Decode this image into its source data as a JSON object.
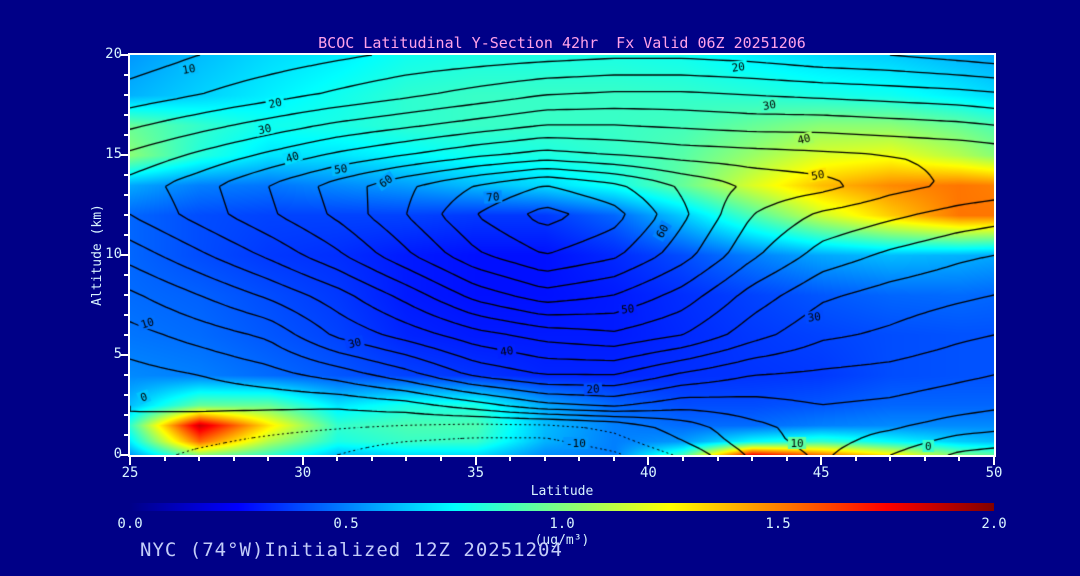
{
  "page": {
    "background": "#000087"
  },
  "header": {
    "title": "BCOC Latitudinal Y-Section 42hr  Fx Valid 06Z 20251206",
    "color": "#ffa2e8"
  },
  "footer": {
    "text": "NYC (74°W)Initialized 12Z 20251204",
    "color": "#c3ccf8"
  },
  "chart_data": {
    "type": "heatmap",
    "title": "BCOC Latitudinal Y-Section 42hr  Fx Valid 06Z 20251206",
    "grid": "off",
    "frame_color": "#ffffff",
    "text_color": "#d8f4ff",
    "contour_line_color": "#000000",
    "x_axis": {
      "label": "Latitude",
      "range": [
        25,
        50
      ],
      "major_ticks": [
        25,
        30,
        35,
        40,
        45,
        50
      ],
      "minor_step": 1
    },
    "y_axis": {
      "label": "Altitude (km)",
      "range": [
        0,
        20
      ],
      "major_ticks": [
        0,
        5,
        10,
        15,
        20
      ],
      "minor_step": 1
    },
    "fill_field": {
      "units": "ug/m3",
      "lats": [
        25,
        27,
        29,
        31,
        33,
        35,
        37,
        39,
        41,
        43,
        45,
        47,
        49,
        50
      ],
      "alts_km": [
        0,
        0.7,
        1.5,
        2.5,
        4,
        6,
        8,
        10,
        12,
        13.5,
        15,
        16.5,
        18,
        20
      ],
      "values": [
        [
          0.55,
          1.0,
          0.85,
          0.62,
          0.68,
          0.68,
          0.52,
          0.5,
          0.9,
          1.8,
          1.55,
          1.3,
          1.0,
          0.95
        ],
        [
          0.72,
          1.55,
          1.1,
          0.8,
          0.86,
          0.86,
          0.6,
          0.5,
          0.55,
          0.75,
          0.85,
          0.75,
          0.65,
          0.62
        ],
        [
          0.85,
          1.85,
          1.3,
          0.85,
          0.9,
          0.9,
          0.62,
          0.5,
          0.46,
          0.46,
          0.5,
          0.52,
          0.52,
          0.52
        ],
        [
          0.62,
          0.95,
          0.95,
          0.7,
          0.8,
          0.8,
          0.58,
          0.45,
          0.4,
          0.4,
          0.42,
          0.45,
          0.45,
          0.45
        ],
        [
          0.52,
          0.5,
          0.46,
          0.42,
          0.38,
          0.35,
          0.32,
          0.32,
          0.34,
          0.35,
          0.36,
          0.4,
          0.41,
          0.41
        ],
        [
          0.48,
          0.46,
          0.42,
          0.38,
          0.32,
          0.3,
          0.3,
          0.3,
          0.33,
          0.36,
          0.38,
          0.4,
          0.41,
          0.41
        ],
        [
          0.46,
          0.44,
          0.4,
          0.36,
          0.3,
          0.28,
          0.28,
          0.3,
          0.34,
          0.38,
          0.42,
          0.45,
          0.46,
          0.45
        ],
        [
          0.45,
          0.4,
          0.36,
          0.34,
          0.3,
          0.28,
          0.28,
          0.33,
          0.4,
          0.5,
          0.58,
          0.62,
          0.6,
          0.58
        ],
        [
          0.45,
          0.4,
          0.38,
          0.38,
          0.38,
          0.36,
          0.36,
          0.45,
          0.65,
          0.9,
          1.15,
          1.35,
          1.52,
          1.52
        ],
        [
          0.58,
          0.5,
          0.48,
          0.52,
          0.56,
          0.62,
          0.68,
          0.78,
          0.95,
          1.18,
          1.38,
          1.48,
          1.52,
          1.5
        ],
        [
          1.02,
          0.82,
          0.7,
          0.7,
          0.74,
          0.78,
          0.8,
          0.85,
          0.92,
          1.05,
          1.18,
          1.22,
          1.1,
          1.02
        ],
        [
          0.95,
          0.85,
          0.78,
          0.8,
          0.84,
          0.86,
          0.86,
          0.86,
          0.88,
          0.95,
          1.02,
          1.02,
          0.95,
          0.9
        ],
        [
          0.6,
          0.66,
          0.72,
          0.78,
          0.84,
          0.86,
          0.86,
          0.86,
          0.85,
          0.83,
          0.8,
          0.78,
          0.72,
          0.68
        ],
        [
          0.55,
          0.62,
          0.68,
          0.72,
          0.78,
          0.8,
          0.8,
          0.8,
          0.78,
          0.72,
          0.68,
          0.65,
          0.6,
          0.58
        ]
      ]
    },
    "contour_field": {
      "lats": [
        25,
        27,
        29,
        31,
        33,
        35,
        37,
        39,
        41,
        43,
        45,
        47,
        49,
        50
      ],
      "alts_km": [
        0,
        0.7,
        1.5,
        2.5,
        4,
        6,
        8,
        10,
        12,
        13.5,
        15,
        16.5,
        18,
        20
      ],
      "interval": 5,
      "level_min": -15,
      "level_max": 75,
      "values": [
        [
          -3,
          -6,
          -8,
          -10,
          -13,
          -14,
          -15,
          -11,
          -4,
          6,
          11,
          5,
          -1,
          -2
        ],
        [
          -2,
          -4,
          -6,
          -8,
          -10,
          -11,
          -11,
          -7,
          0,
          8,
          12,
          8,
          3,
          2
        ],
        [
          0,
          -2,
          -3,
          -4,
          -5,
          -6,
          -6,
          -3,
          3,
          9,
          12,
          11,
          8,
          7
        ],
        [
          0,
          1,
          1,
          1,
          3,
          8,
          14,
          16,
          12,
          13,
          15,
          14,
          12,
          11
        ],
        [
          3,
          5,
          8,
          12,
          18,
          26,
          30,
          30,
          24,
          20,
          19,
          18,
          16,
          15
        ],
        [
          8,
          12,
          16,
          26,
          32,
          38,
          42,
          44,
          40,
          32,
          26,
          24,
          21,
          20
        ],
        [
          14,
          20,
          26,
          33,
          42,
          52,
          58,
          55,
          48,
          38,
          31,
          28,
          26,
          25
        ],
        [
          22,
          29,
          36,
          44,
          54,
          64,
          70,
          66,
          57,
          46,
          38,
          34,
          31,
          30
        ],
        [
          30,
          37,
          44,
          51,
          60,
          70,
          77,
          72,
          61,
          50,
          44,
          41,
          38,
          37
        ],
        [
          32,
          38,
          45,
          52,
          59,
          65,
          70,
          66,
          59,
          54,
          52,
          47,
          44,
          43
        ],
        [
          26,
          31,
          36,
          41,
          45,
          49,
          52,
          50,
          48,
          47,
          46,
          45,
          44,
          43
        ],
        [
          19,
          23,
          27,
          31,
          34,
          37,
          40,
          40,
          39,
          38,
          38,
          37,
          36,
          35
        ],
        [
          12,
          15,
          18,
          21,
          24,
          27,
          30,
          31,
          31,
          30,
          29,
          28,
          27,
          26
        ],
        [
          7,
          10,
          12,
          14,
          16,
          17,
          18,
          19,
          19,
          18,
          16,
          15,
          13,
          12
        ]
      ]
    },
    "contour_labels": [
      {
        "text": "10",
        "lat": 26.7,
        "alt": 19.3,
        "angle": -10
      },
      {
        "text": "20",
        "lat": 29.2,
        "alt": 17.6,
        "angle": -12
      },
      {
        "text": "30",
        "lat": 28.9,
        "alt": 16.3,
        "angle": -12
      },
      {
        "text": "40",
        "lat": 29.7,
        "alt": 14.9,
        "angle": -18
      },
      {
        "text": "50",
        "lat": 31.1,
        "alt": 14.3,
        "angle": -8
      },
      {
        "text": "60",
        "lat": 32.4,
        "alt": 13.7,
        "angle": -35
      },
      {
        "text": "70",
        "lat": 35.5,
        "alt": 12.9,
        "angle": -5
      },
      {
        "text": "60",
        "lat": 40.4,
        "alt": 11.2,
        "angle": -60
      },
      {
        "text": "50",
        "lat": 39.4,
        "alt": 7.3,
        "angle": -5
      },
      {
        "text": "40",
        "lat": 35.9,
        "alt": 5.2,
        "angle": -8
      },
      {
        "text": "30",
        "lat": 31.5,
        "alt": 5.6,
        "angle": -14
      },
      {
        "text": "10",
        "lat": 25.5,
        "alt": 6.6,
        "angle": -18
      },
      {
        "text": "0",
        "lat": 25.4,
        "alt": 2.9,
        "angle": -20
      },
      {
        "text": "20",
        "lat": 38.4,
        "alt": 3.3,
        "angle": -4
      },
      {
        "text": "30",
        "lat": 44.8,
        "alt": 6.9,
        "angle": -8
      },
      {
        "text": "-10",
        "lat": 37.9,
        "alt": 0.6,
        "angle": 0
      },
      {
        "text": "10",
        "lat": 44.3,
        "alt": 0.6,
        "angle": 0
      },
      {
        "text": "0",
        "lat": 48.1,
        "alt": 0.45,
        "angle": 0
      },
      {
        "text": "20",
        "lat": 42.6,
        "alt": 19.4,
        "angle": -8
      },
      {
        "text": "30",
        "lat": 43.5,
        "alt": 17.5,
        "angle": -10
      },
      {
        "text": "40",
        "lat": 44.5,
        "alt": 15.8,
        "angle": -14
      },
      {
        "text": "50",
        "lat": 44.9,
        "alt": 14.0,
        "angle": -10
      }
    ],
    "colorbar": {
      "min": 0.0,
      "max": 2.0,
      "tick_labels": [
        "0.0",
        "0.5",
        "1.0",
        "1.5",
        "2.0"
      ],
      "units_label": "(ug/m³)",
      "stops": [
        [
          0.0,
          "#000087"
        ],
        [
          0.125,
          "#0000ff"
        ],
        [
          0.375,
          "#00ffff"
        ],
        [
          0.625,
          "#ffff00"
        ],
        [
          0.875,
          "#ff0000"
        ],
        [
          1.0,
          "#800000"
        ]
      ]
    }
  }
}
